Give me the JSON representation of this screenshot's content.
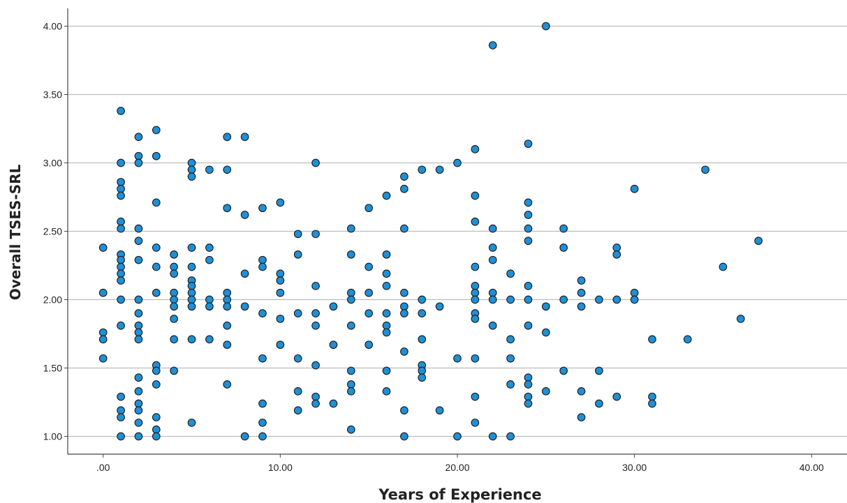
{
  "chart_data": {
    "type": "scatter",
    "title": "",
    "xlabel": "Years of Experience",
    "ylabel": "Overall TSES-SRL",
    "xlim": [
      -2,
      42
    ],
    "ylim": [
      0.87,
      4.13
    ],
    "x_ticks": [
      0,
      10,
      20,
      30,
      40
    ],
    "x_tick_labels": [
      ".00",
      "10.00",
      "20.00",
      "30.00",
      "40.00"
    ],
    "y_ticks": [
      1.0,
      1.5,
      2.0,
      2.5,
      3.0,
      3.5,
      4.0
    ],
    "y_tick_labels": [
      "1.00",
      "1.50",
      "2.00",
      "2.50",
      "3.00",
      "3.50",
      "4.00"
    ],
    "grid": "horizontal",
    "legend": "none",
    "marker_color": "#1f8fd6",
    "marker_edge_color": "#1a1a1a",
    "series": [
      {
        "points": [
          [
            0,
            2.38
          ],
          [
            0,
            2.05
          ],
          [
            0,
            1.76
          ],
          [
            0,
            1.71
          ],
          [
            0,
            1.57
          ],
          [
            1,
            3.38
          ],
          [
            1,
            3.0
          ],
          [
            1,
            2.86
          ],
          [
            1,
            2.81
          ],
          [
            1,
            2.76
          ],
          [
            1,
            2.57
          ],
          [
            1,
            2.52
          ],
          [
            1,
            2.33
          ],
          [
            1,
            2.29
          ],
          [
            1,
            2.24
          ],
          [
            1,
            2.19
          ],
          [
            1,
            2.14
          ],
          [
            1,
            2.0
          ],
          [
            1,
            1.81
          ],
          [
            1,
            1.29
          ],
          [
            1,
            1.19
          ],
          [
            1,
            1.14
          ],
          [
            1,
            1.0
          ],
          [
            2,
            3.19
          ],
          [
            2,
            3.05
          ],
          [
            2,
            3.0
          ],
          [
            2,
            2.52
          ],
          [
            2,
            2.43
          ],
          [
            2,
            2.29
          ],
          [
            2,
            2.0
          ],
          [
            2,
            1.9
          ],
          [
            2,
            1.81
          ],
          [
            2,
            1.76
          ],
          [
            2,
            1.71
          ],
          [
            2,
            1.43
          ],
          [
            2,
            1.33
          ],
          [
            2,
            1.24
          ],
          [
            2,
            1.19
          ],
          [
            2,
            1.1
          ],
          [
            2,
            1.0
          ],
          [
            3,
            3.24
          ],
          [
            3,
            3.05
          ],
          [
            3,
            2.71
          ],
          [
            3,
            2.38
          ],
          [
            3,
            2.24
          ],
          [
            3,
            2.05
          ],
          [
            3,
            1.52
          ],
          [
            3,
            1.48
          ],
          [
            3,
            1.38
          ],
          [
            3,
            1.14
          ],
          [
            3,
            1.05
          ],
          [
            3,
            1.0
          ],
          [
            4,
            2.33
          ],
          [
            4,
            2.24
          ],
          [
            4,
            2.19
          ],
          [
            4,
            2.05
          ],
          [
            4,
            2.0
          ],
          [
            4,
            1.95
          ],
          [
            4,
            1.86
          ],
          [
            4,
            1.71
          ],
          [
            4,
            1.48
          ],
          [
            5,
            3.0
          ],
          [
            5,
            2.95
          ],
          [
            5,
            2.9
          ],
          [
            5,
            2.38
          ],
          [
            5,
            2.24
          ],
          [
            5,
            2.14
          ],
          [
            5,
            2.1
          ],
          [
            5,
            2.05
          ],
          [
            5,
            2.0
          ],
          [
            5,
            1.95
          ],
          [
            5,
            1.71
          ],
          [
            5,
            1.1
          ],
          [
            6,
            2.95
          ],
          [
            6,
            2.38
          ],
          [
            6,
            2.29
          ],
          [
            6,
            2.0
          ],
          [
            6,
            1.95
          ],
          [
            6,
            1.71
          ],
          [
            7,
            3.19
          ],
          [
            7,
            2.95
          ],
          [
            7,
            2.67
          ],
          [
            7,
            2.05
          ],
          [
            7,
            2.0
          ],
          [
            7,
            1.95
          ],
          [
            7,
            1.81
          ],
          [
            7,
            1.67
          ],
          [
            7,
            1.38
          ],
          [
            8,
            3.19
          ],
          [
            8,
            2.62
          ],
          [
            8,
            2.19
          ],
          [
            8,
            1.95
          ],
          [
            8,
            1.0
          ],
          [
            9,
            2.67
          ],
          [
            9,
            2.29
          ],
          [
            9,
            2.24
          ],
          [
            9,
            1.9
          ],
          [
            9,
            1.57
          ],
          [
            9,
            1.24
          ],
          [
            9,
            1.1
          ],
          [
            9,
            1.0
          ],
          [
            10,
            2.71
          ],
          [
            10,
            2.19
          ],
          [
            10,
            2.14
          ],
          [
            10,
            2.05
          ],
          [
            10,
            1.86
          ],
          [
            10,
            1.67
          ],
          [
            11,
            2.48
          ],
          [
            11,
            2.33
          ],
          [
            11,
            1.9
          ],
          [
            11,
            1.57
          ],
          [
            11,
            1.33
          ],
          [
            11,
            1.19
          ],
          [
            12,
            3.0
          ],
          [
            12,
            2.48
          ],
          [
            12,
            2.1
          ],
          [
            12,
            1.9
          ],
          [
            12,
            1.81
          ],
          [
            12,
            1.52
          ],
          [
            12,
            1.29
          ],
          [
            12,
            1.24
          ],
          [
            13,
            1.95
          ],
          [
            13,
            1.67
          ],
          [
            13,
            1.24
          ],
          [
            14,
            2.52
          ],
          [
            14,
            2.33
          ],
          [
            14,
            2.05
          ],
          [
            14,
            2.0
          ],
          [
            14,
            1.81
          ],
          [
            14,
            1.48
          ],
          [
            14,
            1.38
          ],
          [
            14,
            1.33
          ],
          [
            14,
            1.05
          ],
          [
            15,
            2.67
          ],
          [
            15,
            2.24
          ],
          [
            15,
            2.05
          ],
          [
            15,
            1.9
          ],
          [
            15,
            1.67
          ],
          [
            16,
            2.76
          ],
          [
            16,
            2.33
          ],
          [
            16,
            2.19
          ],
          [
            16,
            2.1
          ],
          [
            16,
            1.9
          ],
          [
            16,
            1.81
          ],
          [
            16,
            1.76
          ],
          [
            16,
            1.48
          ],
          [
            16,
            1.33
          ],
          [
            17,
            2.9
          ],
          [
            17,
            2.81
          ],
          [
            17,
            2.52
          ],
          [
            17,
            2.05
          ],
          [
            17,
            1.95
          ],
          [
            17,
            1.9
          ],
          [
            17,
            1.62
          ],
          [
            17,
            1.19
          ],
          [
            17,
            1.0
          ],
          [
            18,
            2.95
          ],
          [
            18,
            2.0
          ],
          [
            18,
            1.9
          ],
          [
            18,
            1.71
          ],
          [
            18,
            1.52
          ],
          [
            18,
            1.48
          ],
          [
            18,
            1.43
          ],
          [
            19,
            2.95
          ],
          [
            19,
            1.95
          ],
          [
            19,
            1.19
          ],
          [
            20,
            3.0
          ],
          [
            20,
            1.57
          ],
          [
            20,
            1.0
          ],
          [
            21,
            3.1
          ],
          [
            21,
            2.76
          ],
          [
            21,
            2.57
          ],
          [
            21,
            2.24
          ],
          [
            21,
            2.1
          ],
          [
            21,
            2.05
          ],
          [
            21,
            2.0
          ],
          [
            21,
            1.9
          ],
          [
            21,
            1.86
          ],
          [
            21,
            1.57
          ],
          [
            21,
            1.29
          ],
          [
            21,
            1.1
          ],
          [
            22,
            3.86
          ],
          [
            22,
            2.52
          ],
          [
            22,
            2.38
          ],
          [
            22,
            2.29
          ],
          [
            22,
            2.05
          ],
          [
            22,
            2.0
          ],
          [
            22,
            1.81
          ],
          [
            22,
            1.0
          ],
          [
            23,
            2.19
          ],
          [
            23,
            2.0
          ],
          [
            23,
            1.71
          ],
          [
            23,
            1.57
          ],
          [
            23,
            1.38
          ],
          [
            23,
            1.0
          ],
          [
            24,
            3.14
          ],
          [
            24,
            2.71
          ],
          [
            24,
            2.62
          ],
          [
            24,
            2.52
          ],
          [
            24,
            2.43
          ],
          [
            24,
            2.1
          ],
          [
            24,
            2.0
          ],
          [
            24,
            1.81
          ],
          [
            24,
            1.43
          ],
          [
            24,
            1.38
          ],
          [
            24,
            1.29
          ],
          [
            24,
            1.24
          ],
          [
            25,
            4.0
          ],
          [
            25,
            1.95
          ],
          [
            25,
            1.76
          ],
          [
            25,
            1.33
          ],
          [
            26,
            2.52
          ],
          [
            26,
            2.38
          ],
          [
            26,
            2.0
          ],
          [
            26,
            1.48
          ],
          [
            27,
            2.14
          ],
          [
            27,
            2.05
          ],
          [
            27,
            1.95
          ],
          [
            27,
            1.33
          ],
          [
            27,
            1.14
          ],
          [
            28,
            2.0
          ],
          [
            28,
            1.48
          ],
          [
            28,
            1.24
          ],
          [
            29,
            2.38
          ],
          [
            29,
            2.33
          ],
          [
            29,
            2.0
          ],
          [
            29,
            1.29
          ],
          [
            30,
            2.81
          ],
          [
            30,
            2.05
          ],
          [
            30,
            2.0
          ],
          [
            31,
            1.71
          ],
          [
            31,
            1.29
          ],
          [
            31,
            1.24
          ],
          [
            33,
            1.71
          ],
          [
            34,
            2.95
          ],
          [
            35,
            2.24
          ],
          [
            36,
            1.86
          ],
          [
            37,
            2.43
          ]
        ]
      }
    ]
  }
}
